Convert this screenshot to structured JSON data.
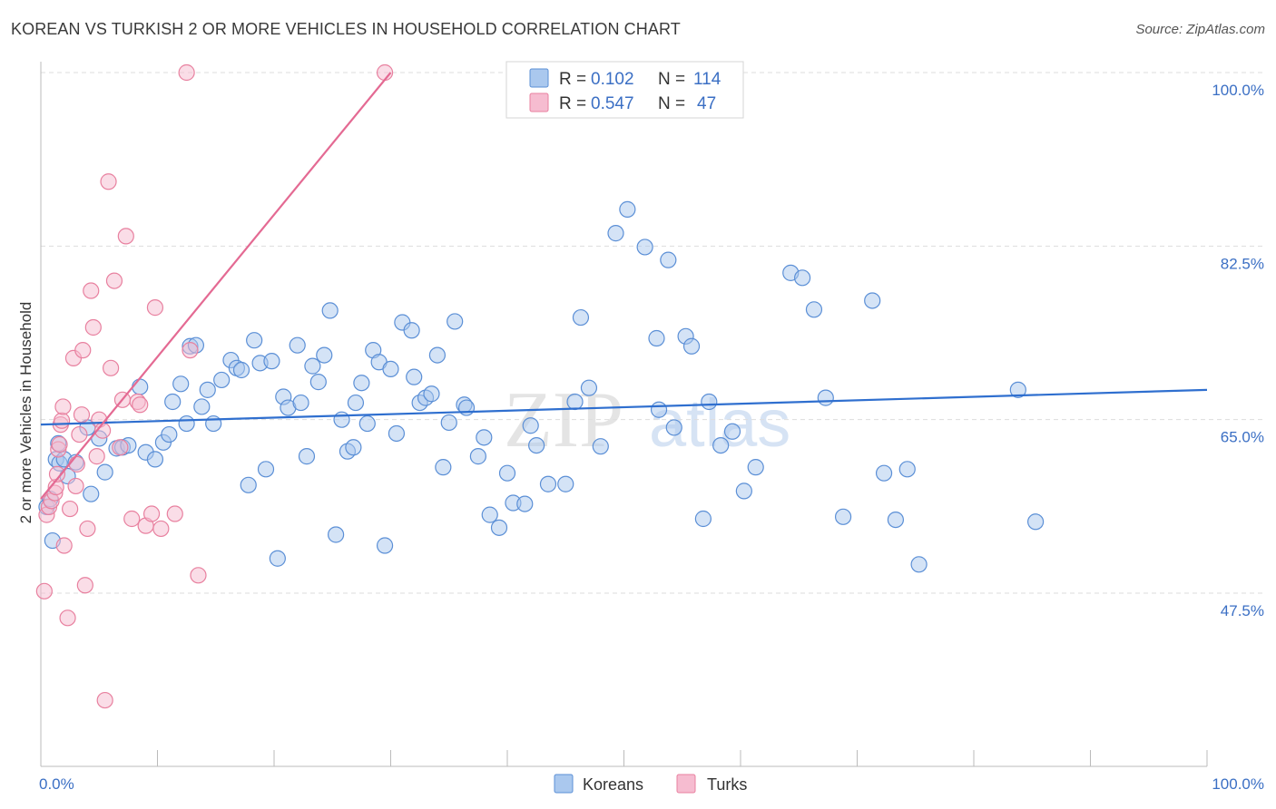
{
  "title": "KOREAN VS TURKISH 2 OR MORE VEHICLES IN HOUSEHOLD CORRELATION CHART",
  "source": "Source: ZipAtlas.com",
  "watermark": {
    "zip": "ZIP",
    "atlas": "atlas"
  },
  "colors": {
    "korean_fill": "#aac8ee",
    "korean_stroke": "#5b8fd6",
    "korean_line": "#2f6fcf",
    "turk_fill": "#f6bcd0",
    "turk_stroke": "#e8809f",
    "turk_line": "#e46a93",
    "grid": "#dddddd",
    "axis_text": "#3b6fc4"
  },
  "legend": {
    "r_label": "R =",
    "n_label": "N =",
    "rows": [
      {
        "r": "0.102",
        "n": "114",
        "series": "koreans"
      },
      {
        "r": "0.547",
        "n": "47",
        "series": "turks"
      }
    ]
  },
  "chart_data": {
    "type": "scatter",
    "title": "KOREAN VS TURKISH 2 OR MORE VEHICLES IN HOUSEHOLD CORRELATION CHART",
    "xlabel": "",
    "ylabel": "2 or more Vehicles in Household",
    "xlim": [
      0,
      100
    ],
    "ylim": [
      32.5,
      102
    ],
    "x_tick_labels": [
      "0.0%",
      "100.0%"
    ],
    "y_ticks": [
      47.5,
      65.0,
      82.5,
      100.0
    ],
    "y_tick_labels": [
      "47.5%",
      "65.0%",
      "82.5%",
      "100.0%"
    ],
    "legend_bottom": [
      "Koreans",
      "Turks"
    ],
    "series": [
      {
        "name": "Koreans",
        "r": 0.102,
        "n": 114,
        "trend": {
          "x0": 0,
          "y0": 64.5,
          "x1": 100,
          "y1": 68.0
        },
        "points": [
          [
            0.5,
            56.2
          ],
          [
            0.8,
            57.0
          ],
          [
            1.0,
            52.8
          ],
          [
            1.3,
            61.0
          ],
          [
            1.5,
            62.6
          ],
          [
            1.6,
            60.6
          ],
          [
            2.0,
            61.0
          ],
          [
            2.3,
            59.3
          ],
          [
            3.0,
            60.7
          ],
          [
            4.0,
            64.2
          ],
          [
            4.3,
            57.5
          ],
          [
            5.0,
            63.1
          ],
          [
            5.5,
            59.7
          ],
          [
            6.5,
            62.1
          ],
          [
            7.0,
            62.2
          ],
          [
            7.5,
            62.4
          ],
          [
            8.5,
            68.3
          ],
          [
            9.0,
            61.7
          ],
          [
            9.8,
            61.0
          ],
          [
            10.5,
            62.7
          ],
          [
            11.0,
            63.5
          ],
          [
            11.3,
            66.8
          ],
          [
            12.0,
            68.6
          ],
          [
            12.5,
            64.6
          ],
          [
            12.8,
            72.4
          ],
          [
            13.3,
            72.5
          ],
          [
            13.8,
            66.3
          ],
          [
            14.3,
            68.0
          ],
          [
            14.8,
            64.6
          ],
          [
            15.5,
            69.0
          ],
          [
            16.3,
            71.0
          ],
          [
            16.8,
            70.2
          ],
          [
            17.2,
            70.0
          ],
          [
            17.8,
            58.4
          ],
          [
            18.3,
            73.0
          ],
          [
            18.8,
            70.7
          ],
          [
            19.3,
            60.0
          ],
          [
            19.8,
            70.9
          ],
          [
            20.3,
            51.0
          ],
          [
            20.8,
            67.3
          ],
          [
            21.2,
            66.2
          ],
          [
            22.0,
            72.5
          ],
          [
            22.3,
            66.7
          ],
          [
            22.8,
            61.3
          ],
          [
            23.3,
            70.4
          ],
          [
            23.8,
            68.8
          ],
          [
            24.3,
            71.5
          ],
          [
            24.8,
            76.0
          ],
          [
            25.3,
            53.4
          ],
          [
            25.8,
            65.0
          ],
          [
            26.3,
            61.8
          ],
          [
            26.8,
            62.2
          ],
          [
            27.0,
            66.7
          ],
          [
            27.5,
            68.7
          ],
          [
            28.0,
            64.6
          ],
          [
            28.5,
            72.0
          ],
          [
            29.0,
            70.8
          ],
          [
            29.5,
            52.3
          ],
          [
            30.0,
            70.1
          ],
          [
            30.5,
            63.6
          ],
          [
            31.0,
            74.8
          ],
          [
            31.8,
            74.0
          ],
          [
            32.0,
            69.3
          ],
          [
            32.5,
            66.7
          ],
          [
            33.0,
            67.2
          ],
          [
            33.5,
            67.6
          ],
          [
            34.0,
            71.5
          ],
          [
            34.5,
            60.2
          ],
          [
            35.0,
            64.7
          ],
          [
            35.5,
            74.9
          ],
          [
            36.3,
            66.5
          ],
          [
            36.5,
            66.2
          ],
          [
            37.5,
            61.3
          ],
          [
            38.0,
            63.2
          ],
          [
            38.5,
            55.4
          ],
          [
            39.3,
            54.1
          ],
          [
            40.0,
            59.6
          ],
          [
            40.5,
            56.6
          ],
          [
            41.5,
            56.5
          ],
          [
            42.0,
            64.4
          ],
          [
            42.5,
            62.4
          ],
          [
            43.5,
            58.5
          ],
          [
            45.0,
            58.5
          ],
          [
            45.8,
            66.8
          ],
          [
            46.3,
            75.3
          ],
          [
            47.0,
            68.2
          ],
          [
            48.0,
            62.3
          ],
          [
            49.3,
            83.8
          ],
          [
            50.3,
            86.2
          ],
          [
            51.8,
            82.4
          ],
          [
            52.8,
            73.2
          ],
          [
            53.0,
            66.0
          ],
          [
            53.8,
            81.1
          ],
          [
            54.3,
            64.2
          ],
          [
            55.3,
            73.4
          ],
          [
            55.8,
            72.4
          ],
          [
            56.8,
            55.0
          ],
          [
            57.3,
            66.8
          ],
          [
            58.3,
            62.4
          ],
          [
            59.3,
            63.8
          ],
          [
            60.3,
            57.8
          ],
          [
            61.3,
            60.2
          ],
          [
            64.3,
            79.8
          ],
          [
            65.3,
            79.3
          ],
          [
            66.3,
            76.1
          ],
          [
            67.3,
            67.2
          ],
          [
            68.8,
            55.2
          ],
          [
            71.3,
            77.0
          ],
          [
            72.3,
            59.6
          ],
          [
            73.3,
            54.9
          ],
          [
            74.3,
            60.0
          ],
          [
            75.3,
            50.4
          ],
          [
            83.8,
            68.0
          ],
          [
            85.3,
            54.7
          ]
        ]
      },
      {
        "name": "Turks",
        "r": 0.547,
        "n": 47,
        "trend": {
          "x0": 0,
          "y0": 57.0,
          "x1": 30,
          "y1": 100.0
        },
        "points": [
          [
            0.3,
            47.7
          ],
          [
            0.5,
            55.4
          ],
          [
            0.7,
            56.2
          ],
          [
            0.9,
            56.8
          ],
          [
            1.2,
            57.6
          ],
          [
            1.3,
            58.2
          ],
          [
            1.4,
            59.5
          ],
          [
            1.5,
            62.0
          ],
          [
            1.6,
            62.5
          ],
          [
            1.7,
            64.5
          ],
          [
            1.8,
            64.9
          ],
          [
            1.9,
            66.3
          ],
          [
            2.0,
            52.3
          ],
          [
            2.3,
            45.0
          ],
          [
            2.5,
            56.0
          ],
          [
            2.8,
            71.2
          ],
          [
            3.0,
            58.3
          ],
          [
            3.1,
            60.5
          ],
          [
            3.3,
            63.5
          ],
          [
            3.5,
            65.5
          ],
          [
            3.6,
            72.0
          ],
          [
            3.8,
            48.3
          ],
          [
            4.0,
            54.0
          ],
          [
            4.3,
            78.0
          ],
          [
            4.5,
            74.3
          ],
          [
            4.8,
            61.3
          ],
          [
            5.0,
            65.0
          ],
          [
            5.3,
            63.9
          ],
          [
            5.5,
            36.7
          ],
          [
            5.8,
            89.0
          ],
          [
            6.0,
            70.2
          ],
          [
            6.3,
            79.0
          ],
          [
            6.8,
            62.2
          ],
          [
            7.0,
            67.0
          ],
          [
            7.3,
            83.5
          ],
          [
            7.8,
            55.0
          ],
          [
            8.3,
            66.8
          ],
          [
            8.5,
            66.5
          ],
          [
            9.0,
            54.3
          ],
          [
            9.5,
            55.5
          ],
          [
            9.8,
            76.3
          ],
          [
            10.3,
            54.0
          ],
          [
            11.5,
            55.5
          ],
          [
            12.8,
            72.0
          ],
          [
            13.5,
            49.3
          ],
          [
            12.5,
            100.0
          ],
          [
            29.5,
            100.0
          ]
        ]
      }
    ]
  },
  "bottom_legend": {
    "koreans": "Koreans",
    "turks": "Turks"
  }
}
